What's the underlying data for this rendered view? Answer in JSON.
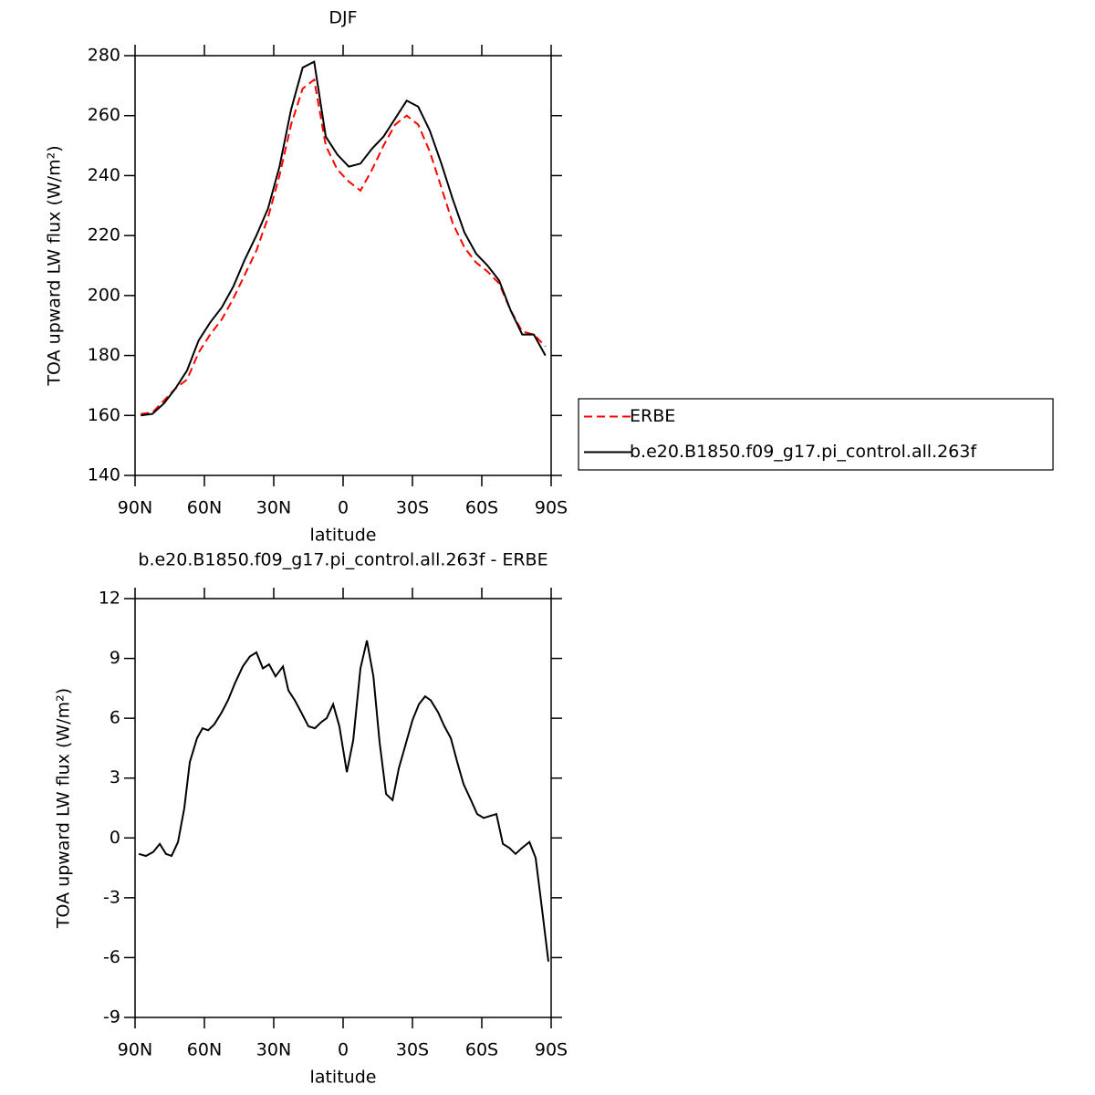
{
  "chart_data": [
    {
      "type": "line",
      "title": "DJF",
      "xlabel": "latitude",
      "ylabel": "TOA upward LW flux (W/m²)",
      "x": [
        87.5,
        82.5,
        77.5,
        72.5,
        67.5,
        62.5,
        57.5,
        52.5,
        47.5,
        42.5,
        37.5,
        32.5,
        27.5,
        22.5,
        17.5,
        12.5,
        7.5,
        2.5,
        -2.5,
        -7.5,
        -12.5,
        -17.5,
        -22.5,
        -27.5,
        -32.5,
        -37.5,
        -42.5,
        -47.5,
        -52.5,
        -57.5,
        -62.5,
        -67.5,
        -72.5,
        -77.5,
        -82.5,
        -87.5
      ],
      "series": [
        {
          "name": "ERBE",
          "color": "#ff0000",
          "style": "dashed",
          "values": [
            160.5,
            161,
            165,
            169,
            172,
            181,
            187,
            192,
            199,
            207,
            215,
            226,
            240,
            257,
            269,
            272,
            250,
            242,
            238,
            235,
            242,
            250,
            257,
            260,
            257,
            248,
            236,
            224,
            216,
            211,
            208,
            204,
            195,
            188,
            187,
            183
          ]
        },
        {
          "name": "b.e20.B1850.f09_g17.pi_control.all.263f",
          "color": "#000000",
          "style": "solid",
          "values": [
            160,
            160.5,
            164,
            169,
            175,
            185,
            191,
            196,
            203,
            212,
            220,
            229,
            243,
            262,
            276,
            278,
            253,
            247,
            243,
            244,
            249,
            253,
            259,
            265,
            263,
            255,
            244,
            232,
            221,
            214,
            210,
            205,
            195,
            187,
            187,
            180
          ]
        }
      ],
      "xlim": [
        90,
        -90
      ],
      "xticks": [
        {
          "value": 90,
          "label": "90N"
        },
        {
          "value": 60,
          "label": "60N"
        },
        {
          "value": 30,
          "label": "30N"
        },
        0,
        {
          "value": -30,
          "label": "30S"
        },
        {
          "value": -60,
          "label": "60S"
        },
        {
          "value": -90,
          "label": "90S"
        }
      ],
      "ylim": [
        140,
        280
      ],
      "yticks": [
        140,
        160,
        180,
        200,
        220,
        240,
        260,
        280
      ],
      "legend": "right"
    },
    {
      "type": "line",
      "title": "b.e20.B1850.f09_g17.pi_control.all.263f - ERBE",
      "xlabel": "latitude",
      "ylabel": "TOA upward LW flux (W/m²)",
      "x": [
        88.4,
        85.3,
        82.1,
        79.3,
        76.6,
        74.2,
        71.4,
        68.7,
        66.3,
        63.2,
        60.8,
        58.4,
        55.7,
        52.5,
        49.8,
        46.6,
        43.4,
        40.3,
        37.5,
        34.7,
        32.0,
        29.2,
        26.0,
        23.7,
        20.9,
        18.1,
        15.0,
        12.2,
        9.5,
        7.1,
        4.3,
        1.6,
        -1.6,
        -4.4,
        -7.5,
        -10.3,
        -13.1,
        -15.8,
        -18.6,
        -21.4,
        -24.1,
        -27.3,
        -30.0,
        -32.8,
        -35.5,
        -37.9,
        -41.1,
        -43.8,
        -46.6,
        -49.4,
        -52.1,
        -55.3,
        -58.0,
        -60.8,
        -63.6,
        -66.3,
        -69.1,
        -71.9,
        -74.6,
        -77.4,
        -80.6,
        -83.3,
        -86.1,
        -88.8
      ],
      "values": [
        -0.8,
        -0.9,
        -0.7,
        -0.3,
        -0.8,
        -0.9,
        -0.2,
        1.5,
        3.8,
        5.0,
        5.5,
        5.4,
        5.7,
        6.3,
        6.9,
        7.8,
        8.6,
        9.1,
        9.3,
        8.5,
        8.7,
        8.1,
        8.6,
        7.4,
        6.9,
        6.3,
        5.6,
        5.5,
        5.8,
        6.0,
        6.7,
        5.6,
        3.3,
        4.9,
        8.5,
        9.9,
        8.1,
        4.8,
        2.2,
        1.9,
        3.5,
        4.8,
        5.9,
        6.7,
        7.1,
        6.9,
        6.3,
        5.6,
        5.0,
        3.8,
        2.7,
        1.9,
        1.2,
        1.0,
        1.1,
        1.2,
        -0.3,
        -0.5,
        -0.8,
        -0.5,
        -0.2,
        -1.0,
        -3.6,
        -6.2
      ],
      "color": "#000000",
      "xlim": [
        90,
        -90
      ],
      "xticks": [
        {
          "value": 90,
          "label": "90N"
        },
        {
          "value": 60,
          "label": "60N"
        },
        {
          "value": 30,
          "label": "30N"
        },
        0,
        {
          "value": -30,
          "label": "30S"
        },
        {
          "value": -60,
          "label": "60S"
        },
        {
          "value": -90,
          "label": "90S"
        }
      ],
      "ylim": [
        -9,
        12
      ],
      "yticks": [
        -9,
        -6,
        -3,
        0,
        3,
        6,
        9,
        12
      ]
    }
  ]
}
